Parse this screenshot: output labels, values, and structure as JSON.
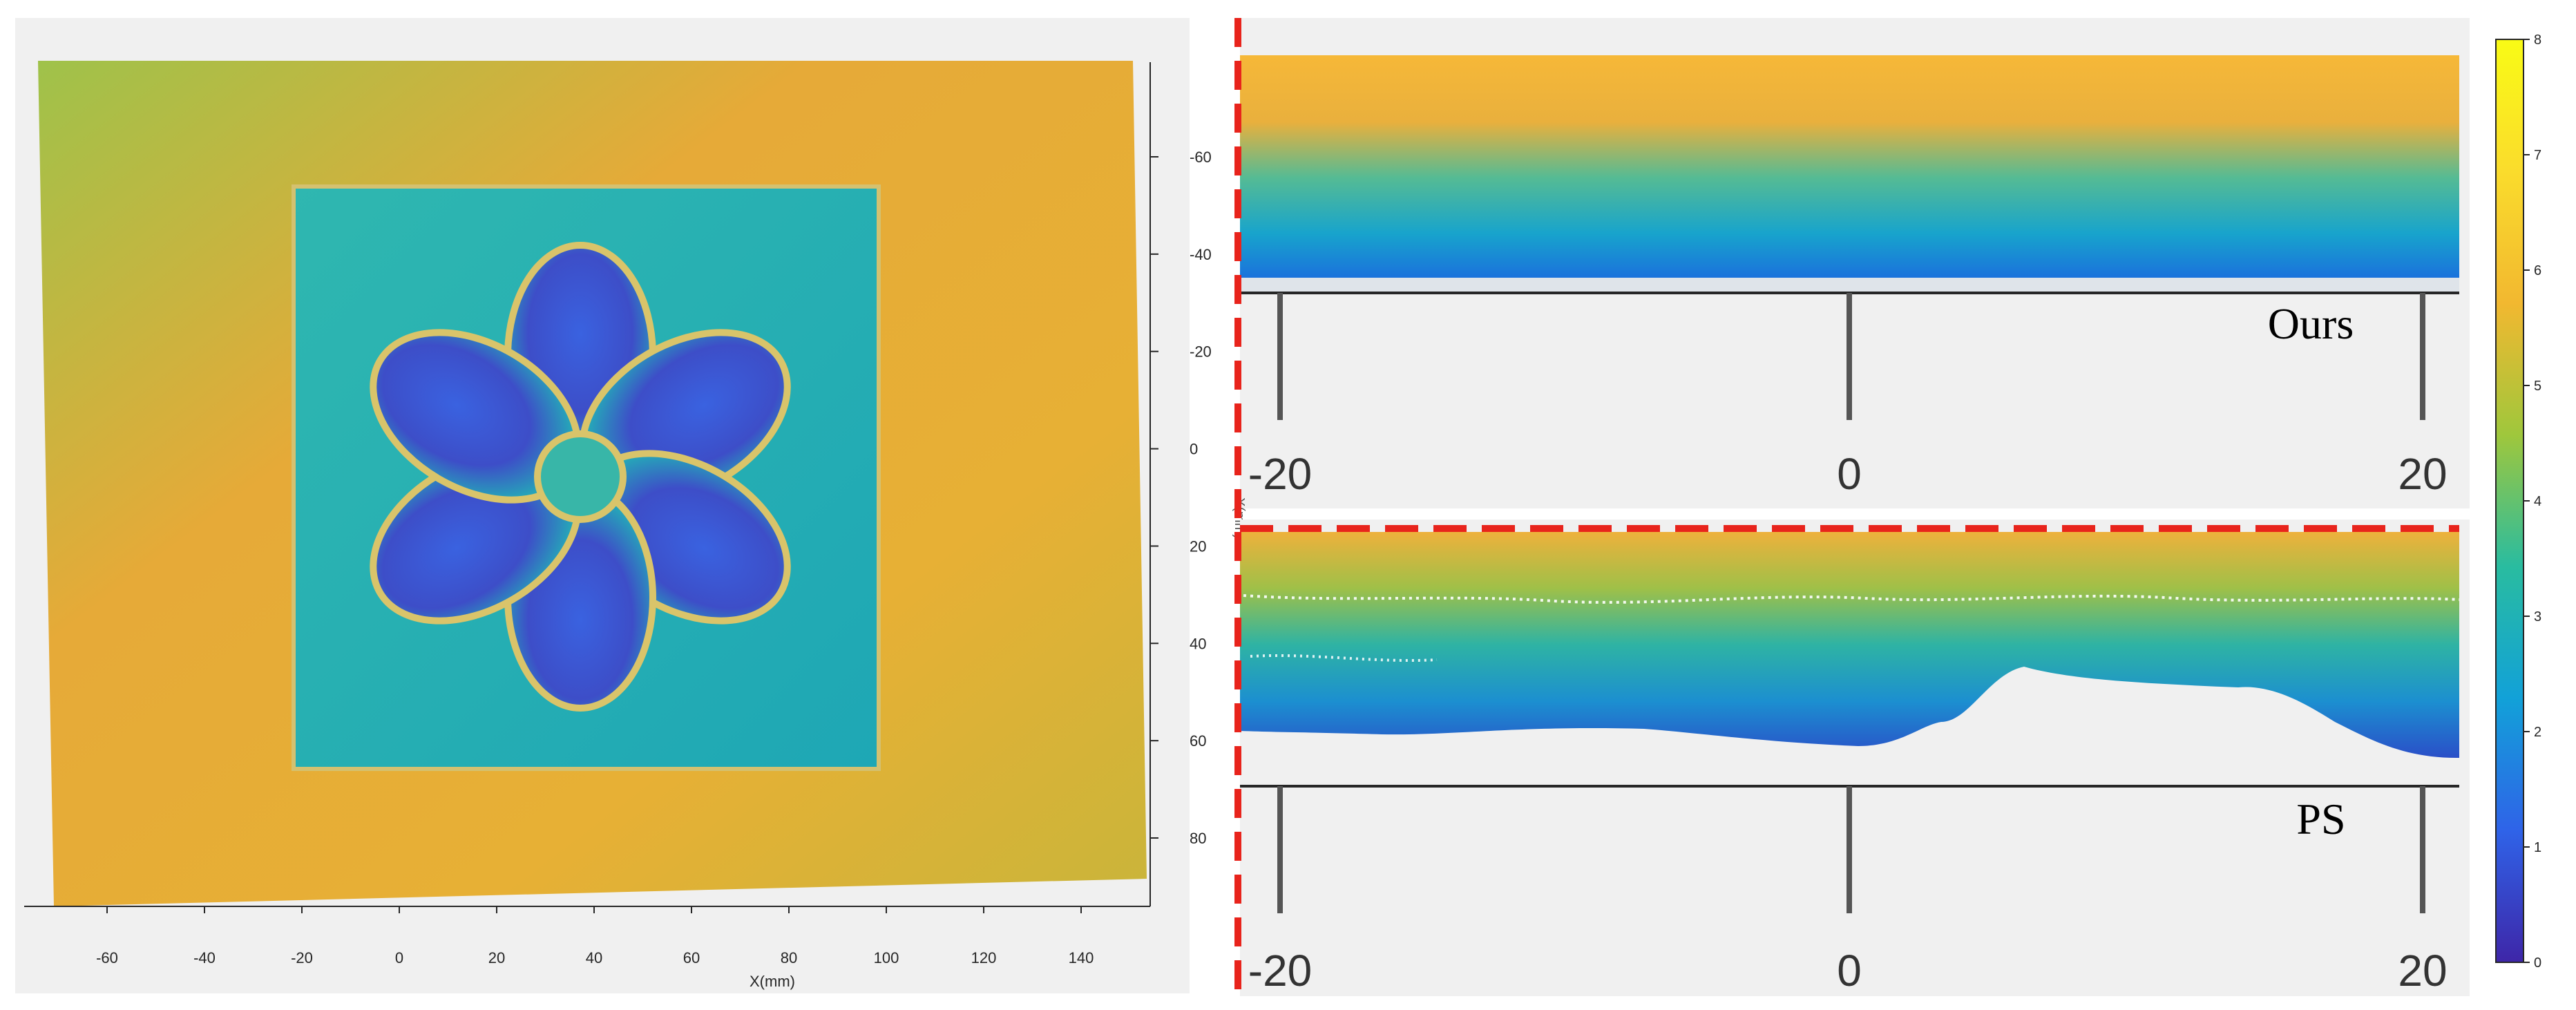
{
  "colors": {
    "accent_dash": "#e8241c",
    "panel_bg": "#f0f0f0",
    "axis": "#262626",
    "colormap": [
      "#3e26a8",
      "#2f63e8",
      "#12a1d8",
      "#29bca0",
      "#9fc73c",
      "#f2b830",
      "#fadc2c",
      "#f9fb15"
    ]
  },
  "chart_data": [
    {
      "type": "heatmap",
      "name": "left-3d-surface",
      "xlabel": "X(mm)",
      "ylabel": "",
      "x_ticks": [
        "-60",
        "-40",
        "-20",
        "0",
        "20",
        "40",
        "60",
        "80",
        "100",
        "120",
        "140"
      ],
      "y_ticks": [
        "-60",
        "-40",
        "-20",
        "0",
        "20",
        "40",
        "60",
        "80"
      ],
      "xlim": [
        -70,
        155
      ],
      "ylim": [
        -80,
        90
      ]
    },
    {
      "type": "area",
      "label": "Ours",
      "x_ticks": [
        "-20",
        "0",
        "20"
      ],
      "ylabel_fragment": "X(mm)"
    },
    {
      "type": "area",
      "label": "PS",
      "x_ticks": [
        "-20",
        "0",
        "20"
      ]
    },
    {
      "type": "heatmap",
      "name": "colorbar",
      "ticks": [
        "0",
        "1",
        "2",
        "3",
        "4",
        "5",
        "6",
        "7",
        "8"
      ],
      "range": [
        0,
        8
      ]
    }
  ]
}
